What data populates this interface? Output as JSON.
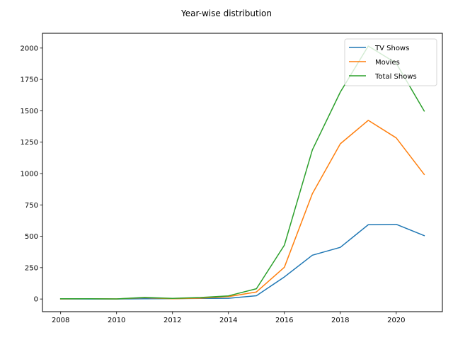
{
  "chart_data": {
    "type": "line",
    "title": "Year-wise distribution",
    "xlabel": "",
    "ylabel": "",
    "x": [
      2008,
      2009,
      2010,
      2011,
      2012,
      2013,
      2014,
      2015,
      2016,
      2017,
      2018,
      2019,
      2020,
      2021
    ],
    "series": [
      {
        "name": "TV Shows",
        "color": "#1f77b4",
        "values": [
          1,
          0,
          0,
          2,
          3,
          5,
          6,
          26,
          176,
          349,
          412,
          592,
          595,
          505
        ]
      },
      {
        "name": "Movies",
        "color": "#ff7f0e",
        "values": [
          1,
          2,
          1,
          11,
          2,
          7,
          19,
          56,
          253,
          839,
          1237,
          1424,
          1284,
          993
        ]
      },
      {
        "name": "Total Shows",
        "color": "#2ca02c",
        "values": [
          2,
          2,
          1,
          13,
          5,
          12,
          25,
          82,
          429,
          1188,
          1649,
          2016,
          1879,
          1498
        ]
      }
    ],
    "xlim": [
      2007.35,
      2021.65
    ],
    "ylim": [
      -100.8,
      2117.6
    ],
    "xticks": [
      2008,
      2010,
      2012,
      2014,
      2016,
      2018,
      2020
    ],
    "yticks": [
      0,
      250,
      500,
      750,
      1000,
      1250,
      1500,
      1750,
      2000
    ],
    "legend_position": "top-right",
    "grid": false
  }
}
